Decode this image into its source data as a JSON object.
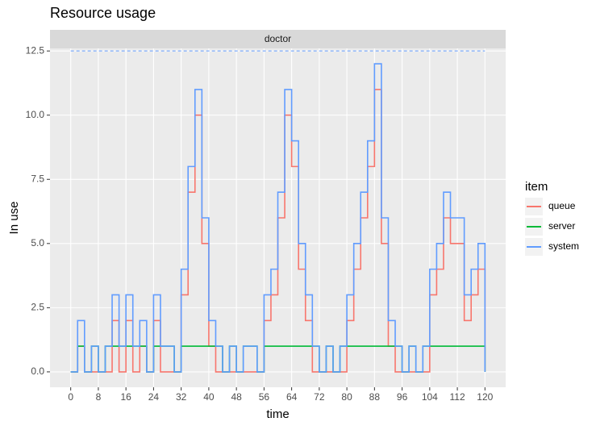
{
  "chart_data": {
    "type": "step",
    "title": "Resource usage",
    "facet": "doctor",
    "xlabel": "time",
    "ylabel": "In use",
    "legend_title": "item",
    "x": [
      0,
      2,
      4,
      6,
      8,
      10,
      12,
      14,
      16,
      18,
      20,
      22,
      24,
      26,
      28,
      30,
      32,
      34,
      36,
      38,
      40,
      42,
      44,
      46,
      48,
      50,
      52,
      54,
      56,
      58,
      60,
      62,
      64,
      66,
      68,
      70,
      72,
      74,
      76,
      78,
      80,
      82,
      84,
      86,
      88,
      90,
      92,
      94,
      96,
      98,
      100,
      102,
      104,
      106,
      108,
      110,
      112,
      114,
      116,
      118,
      120
    ],
    "series": [
      {
        "name": "queue",
        "color": "#f8766d",
        "values": [
          0,
          1,
          0,
          0,
          0,
          0,
          2,
          0,
          2,
          0,
          1,
          0,
          2,
          0,
          0,
          0,
          3,
          7,
          10,
          5,
          1,
          0,
          0,
          0,
          0,
          0,
          0,
          0,
          2,
          3,
          6,
          10,
          8,
          4,
          2,
          0,
          0,
          0,
          0,
          0,
          2,
          4,
          6,
          8,
          11,
          5,
          1,
          0,
          0,
          0,
          0,
          0,
          3,
          4,
          6,
          5,
          5,
          2,
          3,
          4,
          0
        ]
      },
      {
        "name": "server",
        "color": "#00ba38",
        "values": [
          0,
          1,
          0,
          1,
          0,
          1,
          1,
          1,
          1,
          1,
          1,
          0,
          1,
          1,
          1,
          0,
          1,
          1,
          1,
          1,
          1,
          1,
          0,
          1,
          0,
          1,
          1,
          0,
          1,
          1,
          1,
          1,
          1,
          1,
          1,
          1,
          0,
          1,
          0,
          1,
          1,
          1,
          1,
          1,
          1,
          1,
          1,
          1,
          0,
          1,
          0,
          1,
          1,
          1,
          1,
          1,
          1,
          1,
          1,
          1,
          0
        ]
      },
      {
        "name": "system",
        "color": "#619cff",
        "values": [
          0,
          2,
          0,
          1,
          0,
          1,
          3,
          1,
          3,
          1,
          2,
          0,
          3,
          1,
          1,
          0,
          4,
          8,
          11,
          6,
          2,
          1,
          0,
          1,
          0,
          1,
          1,
          0,
          3,
          4,
          7,
          11,
          9,
          5,
          3,
          1,
          0,
          1,
          0,
          1,
          3,
          5,
          7,
          9,
          12,
          6,
          2,
          1,
          0,
          1,
          0,
          1,
          4,
          5,
          7,
          6,
          6,
          3,
          4,
          5,
          0
        ]
      }
    ],
    "capacity": {
      "value": 12.5,
      "color": "#619cff",
      "x": [
        0,
        120
      ]
    },
    "xlim": [
      -6,
      126
    ],
    "ylim": [
      -0.6,
      12.6
    ],
    "xticks": [
      0,
      8,
      16,
      24,
      32,
      40,
      48,
      56,
      64,
      72,
      80,
      88,
      96,
      104,
      112,
      120
    ],
    "yticks": [
      {
        "value": 0,
        "label": "0.0"
      },
      {
        "value": 2.5,
        "label": "2.5"
      },
      {
        "value": 5,
        "label": "5.0"
      },
      {
        "value": 7.5,
        "label": "7.5"
      },
      {
        "value": 10,
        "label": "10.0"
      },
      {
        "value": 12.5,
        "label": "12.5"
      }
    ],
    "grid": true,
    "legend": "right"
  }
}
